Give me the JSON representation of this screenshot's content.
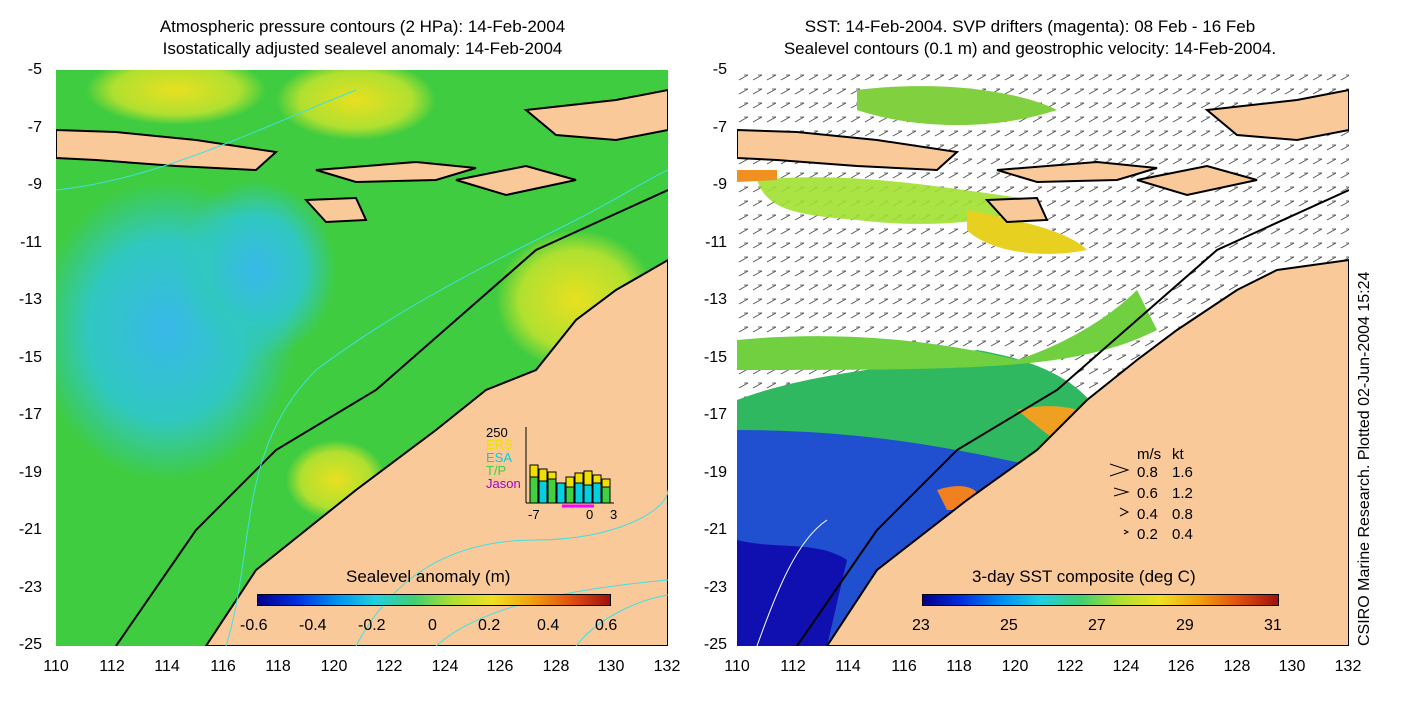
{
  "left_panel": {
    "title_line1": "Atmospheric pressure contours (2 HPa): 14-Feb-2004",
    "title_line2": "Isostatically adjusted sealevel anomaly: 14-Feb-2004",
    "y_ticks": [
      "-5",
      "-7",
      "-9",
      "-11",
      "-13",
      "-15",
      "-17",
      "-19",
      "-21",
      "-23",
      "-25"
    ],
    "x_ticks": [
      "110",
      "112",
      "114",
      "116",
      "118",
      "120",
      "122",
      "124",
      "126",
      "128",
      "130",
      "132"
    ],
    "colorbar_title": "Sealevel anomaly (m)",
    "colorbar_ticks": [
      "-0.6",
      "-0.4",
      "-0.2",
      "0",
      "0.2",
      "0.4",
      "0.6"
    ],
    "inset": {
      "y_max": "250",
      "legend": [
        "ERS",
        "ESA",
        "T/P",
        "Jason"
      ],
      "legend_colors": [
        "#f0e000",
        "#00d0e0",
        "#40d040",
        "#a000d0"
      ],
      "x_ticks": [
        "-7",
        "0",
        "3"
      ]
    }
  },
  "right_panel": {
    "title_line1": "SST: 14-Feb-2004. SVP drifters (magenta): 08 Feb - 16 Feb",
    "title_line2": "Sealevel contours (0.1 m) and geostrophic velocity: 14-Feb-2004.",
    "y_ticks": [
      "-5",
      "-7",
      "-9",
      "-11",
      "-13",
      "-15",
      "-17",
      "-19",
      "-21",
      "-23",
      "-25"
    ],
    "x_ticks": [
      "110",
      "112",
      "114",
      "116",
      "118",
      "120",
      "122",
      "124",
      "126",
      "128",
      "130",
      "132"
    ],
    "colorbar_title": "3-day SST composite (deg C)",
    "colorbar_ticks": [
      "23",
      "25",
      "27",
      "29",
      "31"
    ],
    "velocity_legend": {
      "header_ms": "m/s",
      "header_kt": "kt",
      "rows": [
        {
          "ms": "0.8",
          "kt": "1.6"
        },
        {
          "ms": "0.6",
          "kt": "1.2"
        },
        {
          "ms": "0.4",
          "kt": "0.8"
        },
        {
          "ms": "0.2",
          "kt": "0.4"
        }
      ]
    }
  },
  "credit": "CSIRO Marine Research. Plotted 02-Jun-2004 15:24",
  "colors": {
    "land": "#f9c99a",
    "ocean_green": "#40cc40",
    "ocean_cyan": "#30c8d0",
    "ocean_yellow": "#e0e020",
    "pressure_contour": "#40e0e0"
  }
}
